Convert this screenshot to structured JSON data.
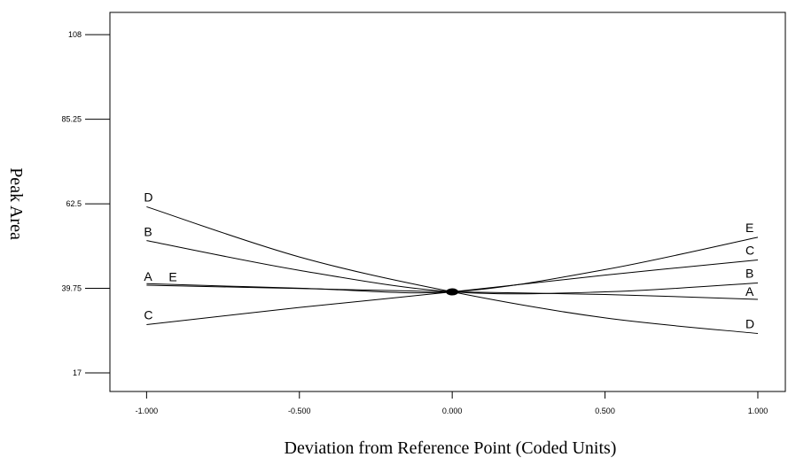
{
  "chart_data": {
    "type": "line",
    "title": "",
    "xlabel": "Deviation from Reference Point (Coded Units)",
    "ylabel": "Peak Area",
    "xlim": [
      -1.12,
      1.09
    ],
    "ylim": [
      12,
      114
    ],
    "grid": false,
    "x_ticks": [
      "-1.000",
      "-0.500",
      "0.000",
      "0.500",
      "1.000"
    ],
    "y_ticks": [
      "17",
      "39.75",
      "62.5",
      "85.25",
      "108"
    ],
    "x": [
      -1.0,
      -0.5,
      0.0,
      0.5,
      1.0
    ],
    "series": [
      {
        "name": "A",
        "values": [
          40.6,
          39.7,
          38.8,
          38.1,
          36.8
        ]
      },
      {
        "name": "B",
        "values": [
          52.6,
          44.6,
          38.8,
          38.8,
          41.2
        ]
      },
      {
        "name": "C",
        "values": [
          30.0,
          34.6,
          38.8,
          43.3,
          47.4
        ]
      },
      {
        "name": "D",
        "values": [
          61.7,
          48.2,
          38.8,
          31.8,
          27.6
        ]
      },
      {
        "name": "E",
        "values": [
          41.0,
          39.8,
          38.8,
          44.8,
          53.5
        ]
      }
    ],
    "center_point": {
      "x": 0.0,
      "y": 38.8
    },
    "label_placement": {
      "A": {
        "left": [
          40.5,
          -0.0
        ],
        "right": [
          36.8,
          0
        ]
      },
      "B": {
        "left": [
          52.6,
          0
        ],
        "right": [
          41.2,
          0
        ]
      },
      "C": {
        "left": [
          30.0,
          0
        ],
        "right": [
          47.4,
          0
        ]
      },
      "D": {
        "left": [
          61.7,
          0
        ],
        "right": [
          27.6,
          0
        ]
      },
      "E": {
        "left": [
          41.0,
          0
        ],
        "right": [
          53.5,
          0
        ]
      }
    }
  }
}
